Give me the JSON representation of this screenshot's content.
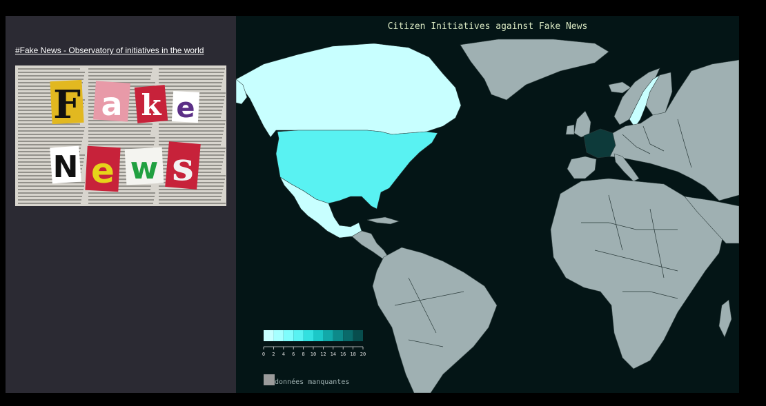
{
  "sidebar": {
    "title": "#Fake News - Observatory of initiatives in the world",
    "banner": {
      "row1": [
        "F",
        "a",
        "k",
        "e"
      ],
      "row2": [
        "N",
        "e",
        "w",
        "s"
      ]
    }
  },
  "map": {
    "title": "Citizen Initiatives against Fake News",
    "legend": {
      "ticks": [
        "0",
        "2",
        "4",
        "6",
        "8",
        "10",
        "12",
        "14",
        "16",
        "18",
        "20"
      ],
      "colors": [
        "#c8ffff",
        "#a6ffff",
        "#7ffcfc",
        "#59f2f2",
        "#33e0e0",
        "#1cc8c8",
        "#12a9a9",
        "#0d8a8a",
        "#0a6a6a",
        "#084d4d"
      ],
      "missing_label": "données manquantes",
      "missing_color": "#9b9b9b"
    },
    "colors": {
      "ocean": "#041516",
      "no_data": "#9fb0b2",
      "canada": "#c8ffff",
      "usa": "#59f2f2",
      "mexico": "#c8ffff",
      "sweden": "#c8ffff",
      "france": "#0d3a3a",
      "spain": "#9fb0b2"
    }
  }
}
